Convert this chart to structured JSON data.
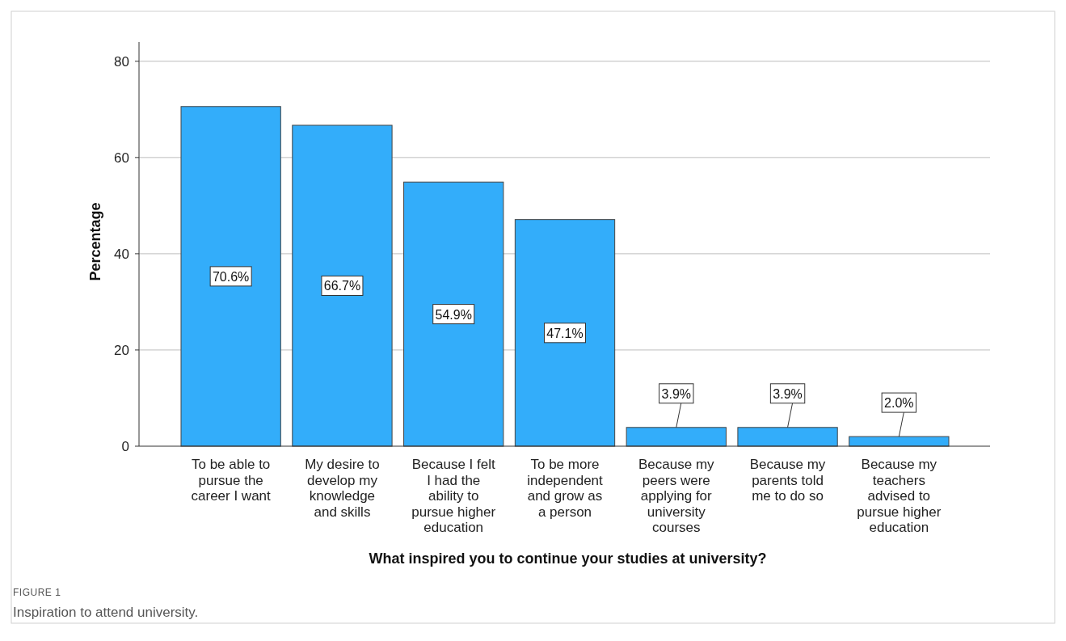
{
  "chart_data": {
    "type": "bar",
    "xlabel": "What inspired you to continue your studies at university?",
    "ylabel": "Percentage",
    "categories": [
      "To be able to pursue the career I want",
      "My desire to develop my knowledge and skills",
      "Because I felt I had the ability to pursue higher education",
      "To be more independent and grow as a person",
      "Because my peers were applying for university courses",
      "Because my parents told me to do so",
      "Because my teachers advised to pursue higher education"
    ],
    "values": [
      70.6,
      66.7,
      54.9,
      47.1,
      3.9,
      3.9,
      2.0
    ],
    "value_labels": [
      "70.6%",
      "66.7%",
      "54.9%",
      "47.1%",
      "3.9%",
      "3.9%",
      "2.0%"
    ],
    "color": "#33adfa",
    "ylim": [
      0,
      84
    ],
    "yticks": [
      0,
      20,
      40,
      60,
      80
    ],
    "grid": "y",
    "annotations": [
      "FIGURE 1",
      "Inspiration to attend university."
    ]
  }
}
